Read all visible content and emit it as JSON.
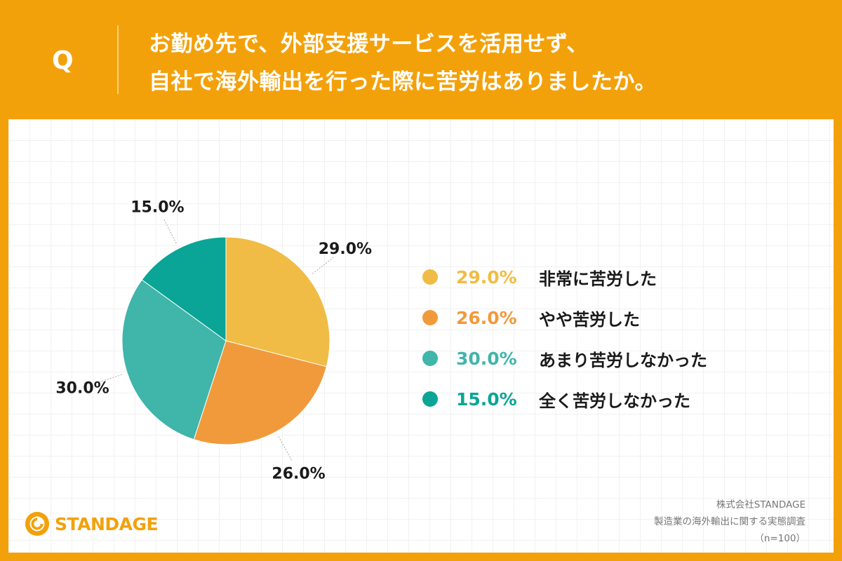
{
  "header": {
    "q_mark": "Q",
    "question_line1": "お勤め先で、外部支援サービスを活用せず、",
    "question_line2": "自社で海外輸出を行った際に苦労はありましたか。"
  },
  "chart_data": {
    "type": "pie",
    "title": "",
    "slices": [
      {
        "label": "非常に苦労した",
        "value": 29.0,
        "display": "29.0%",
        "color": "#f0bc45"
      },
      {
        "label": "やや苦労した",
        "value": 26.0,
        "display": "26.0%",
        "color": "#f19a3c"
      },
      {
        "label": "あまり苦労しなかった",
        "value": 30.0,
        "display": "30.0%",
        "color": "#40b5aa"
      },
      {
        "label": "全く苦労しなかった",
        "value": 15.0,
        "display": "15.0%",
        "color": "#0aa596"
      }
    ],
    "legend_position": "right",
    "start_angle": "12 o'clock, clockwise"
  },
  "brand": {
    "logo_text": "STANDAGE",
    "color": "#f3a10b"
  },
  "source": {
    "company": "株式会社STANDAGE",
    "survey": "製造業の海外輸出に関する実態調査",
    "sample": "（n=100）"
  }
}
